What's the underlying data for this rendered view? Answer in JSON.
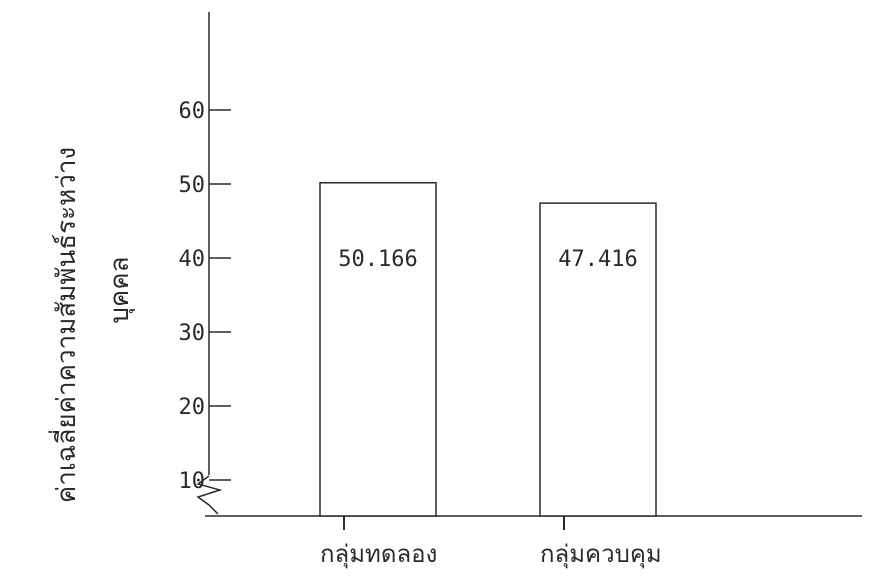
{
  "chart_data": {
    "type": "bar",
    "title": "",
    "xlabel": "",
    "ylabel": "ค่าเฉลี่ยค่าความสัมพันธ์ระหว่างบุคคล",
    "ylabel_lines": [
      "ค่าเฉลี่ยค่าความสัมพันธ์ระหว่าง",
      "บุคคล"
    ],
    "categories": [
      "กลุ่มทดลอง",
      "กลุ่มควบคุม"
    ],
    "values": [
      50.166,
      47.416
    ],
    "value_labels": [
      "50.166",
      "47.416"
    ],
    "yticks": [
      10,
      20,
      30,
      40,
      50,
      60
    ],
    "ytick_labels": [
      "10",
      "20",
      "30",
      "40",
      "50",
      "60"
    ],
    "ylim": [
      0,
      70
    ],
    "axis_break": true,
    "grid": false,
    "legend": "none",
    "colors": {
      "ink": "#2a2a2a",
      "bar_fill": "#ffffff"
    }
  }
}
